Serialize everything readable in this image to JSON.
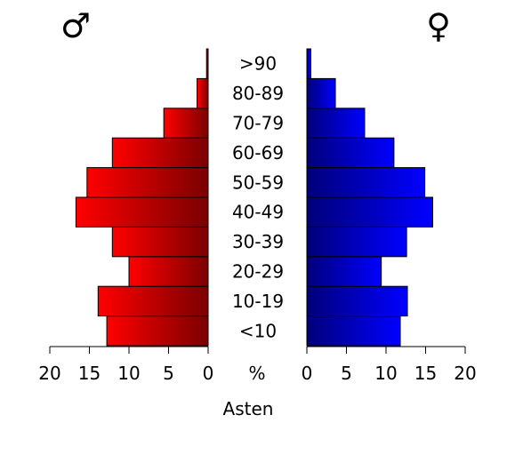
{
  "chart_data": {
    "type": "bar",
    "orientation": "horizontal",
    "layout": "population-pyramid",
    "categories": [
      "<10",
      "10-19",
      "20-29",
      "30-39",
      "40-49",
      "50-59",
      "60-69",
      "70-79",
      "80-89",
      ">90"
    ],
    "series": [
      {
        "name": "♂",
        "side": "left",
        "values": [
          12.8,
          13.9,
          10.0,
          12.1,
          16.7,
          15.3,
          12.1,
          5.6,
          1.4,
          0.2
        ]
      },
      {
        "name": "♀",
        "side": "right",
        "values": [
          11.8,
          12.7,
          9.4,
          12.6,
          15.9,
          14.9,
          11.0,
          7.3,
          3.6,
          0.5
        ]
      }
    ],
    "xlim": [
      0,
      20
    ],
    "ticks": [
      "20",
      "15",
      "10",
      "5",
      "0"
    ],
    "right_ticks": [
      "0",
      "5",
      "10",
      "15",
      "20"
    ],
    "unit_label": "%",
    "xlabel": "Asten",
    "male_symbol": "♂",
    "female_symbol": "♀",
    "colors": {
      "male_light": "#ff0000",
      "male_dark": "#7a0000",
      "female_light": "#0000ff",
      "female_dark": "#00007a"
    },
    "legend": "none",
    "grid": false
  }
}
